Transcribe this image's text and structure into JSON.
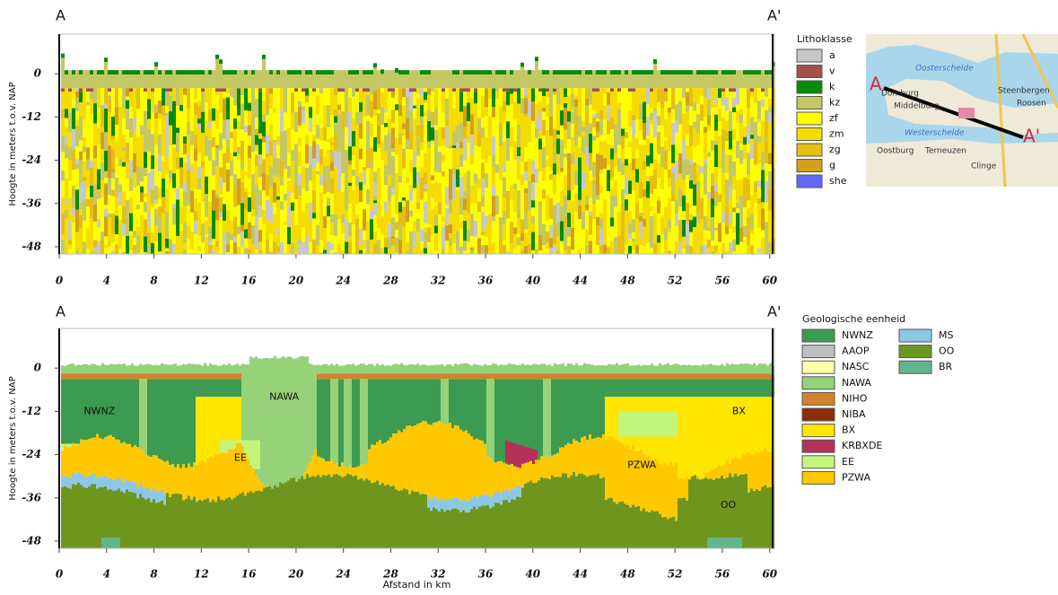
{
  "chart_data": [
    {
      "type": "section",
      "corner_labels": [
        "A",
        "A'"
      ],
      "ylabel": "Hoogte in meters t.o.v. NAP",
      "xlim": [
        0,
        60.4
      ],
      "xticks": [
        0,
        4,
        8,
        12,
        16,
        20,
        24,
        28,
        32,
        36,
        40,
        44,
        48,
        52,
        56,
        60
      ],
      "ylim": [
        -50,
        11
      ],
      "yticks": [
        0,
        -12,
        -24,
        -36,
        -48
      ],
      "legend_title": "Lithoklasse",
      "legend": [
        {
          "name": "a",
          "color": "#c8c8c8"
        },
        {
          "name": "v",
          "color": "#a0524b"
        },
        {
          "name": "k",
          "color": "#0a8a0a"
        },
        {
          "name": "kz",
          "color": "#c3c864"
        },
        {
          "name": "zf",
          "color": "#ffff00"
        },
        {
          "name": "zm",
          "color": "#f5dc00"
        },
        {
          "name": "zg",
          "color": "#e6be14"
        },
        {
          "name": "g",
          "color": "#d2a01e"
        },
        {
          "name": "she",
          "color": "#6464ff"
        }
      ]
    },
    {
      "type": "section",
      "corner_labels": [
        "A",
        "A'"
      ],
      "ylabel": "Hoogte in meters t.o.v. NAP",
      "xlabel": "Afstand in km",
      "xlim": [
        0,
        60.4
      ],
      "xticks": [
        0,
        4,
        8,
        12,
        16,
        20,
        24,
        28,
        32,
        36,
        40,
        44,
        48,
        52,
        56,
        60
      ],
      "ylim": [
        -50,
        11
      ],
      "yticks": [
        0,
        -12,
        -24,
        -36,
        -48
      ],
      "legend_title": "Geologische eenheid",
      "legend": [
        {
          "name": "NWNZ",
          "color": "#3c9b50"
        },
        {
          "name": "AAOP",
          "color": "#c0c0c0"
        },
        {
          "name": "NASC",
          "color": "#ffffaa"
        },
        {
          "name": "NAWA",
          "color": "#96d278"
        },
        {
          "name": "NIHO",
          "color": "#d2822d"
        },
        {
          "name": "NIBA",
          "color": "#8c2d0a"
        },
        {
          "name": "BX",
          "color": "#ffe600"
        },
        {
          "name": "KRBXDE",
          "color": "#b4325a"
        },
        {
          "name": "EE",
          "color": "#c3f57d"
        },
        {
          "name": "PZWA",
          "color": "#ffc800"
        },
        {
          "name": "MS",
          "color": "#8cc8e6"
        },
        {
          "name": "OO",
          "color": "#6e961e"
        },
        {
          "name": "BR",
          "color": "#64b48c"
        }
      ],
      "annotations": [
        "NWNZ",
        "NAWA",
        "BX",
        "EE",
        "PZWA",
        "OO"
      ]
    }
  ],
  "map": {
    "labels": [
      "Oosterschelde",
      "Domburg",
      "Middelburg",
      "Westerschelde",
      "Steenbergen",
      "Roosen",
      "Oostburg",
      "Terneuzen",
      "Clinge",
      "A",
      "A'"
    ]
  }
}
